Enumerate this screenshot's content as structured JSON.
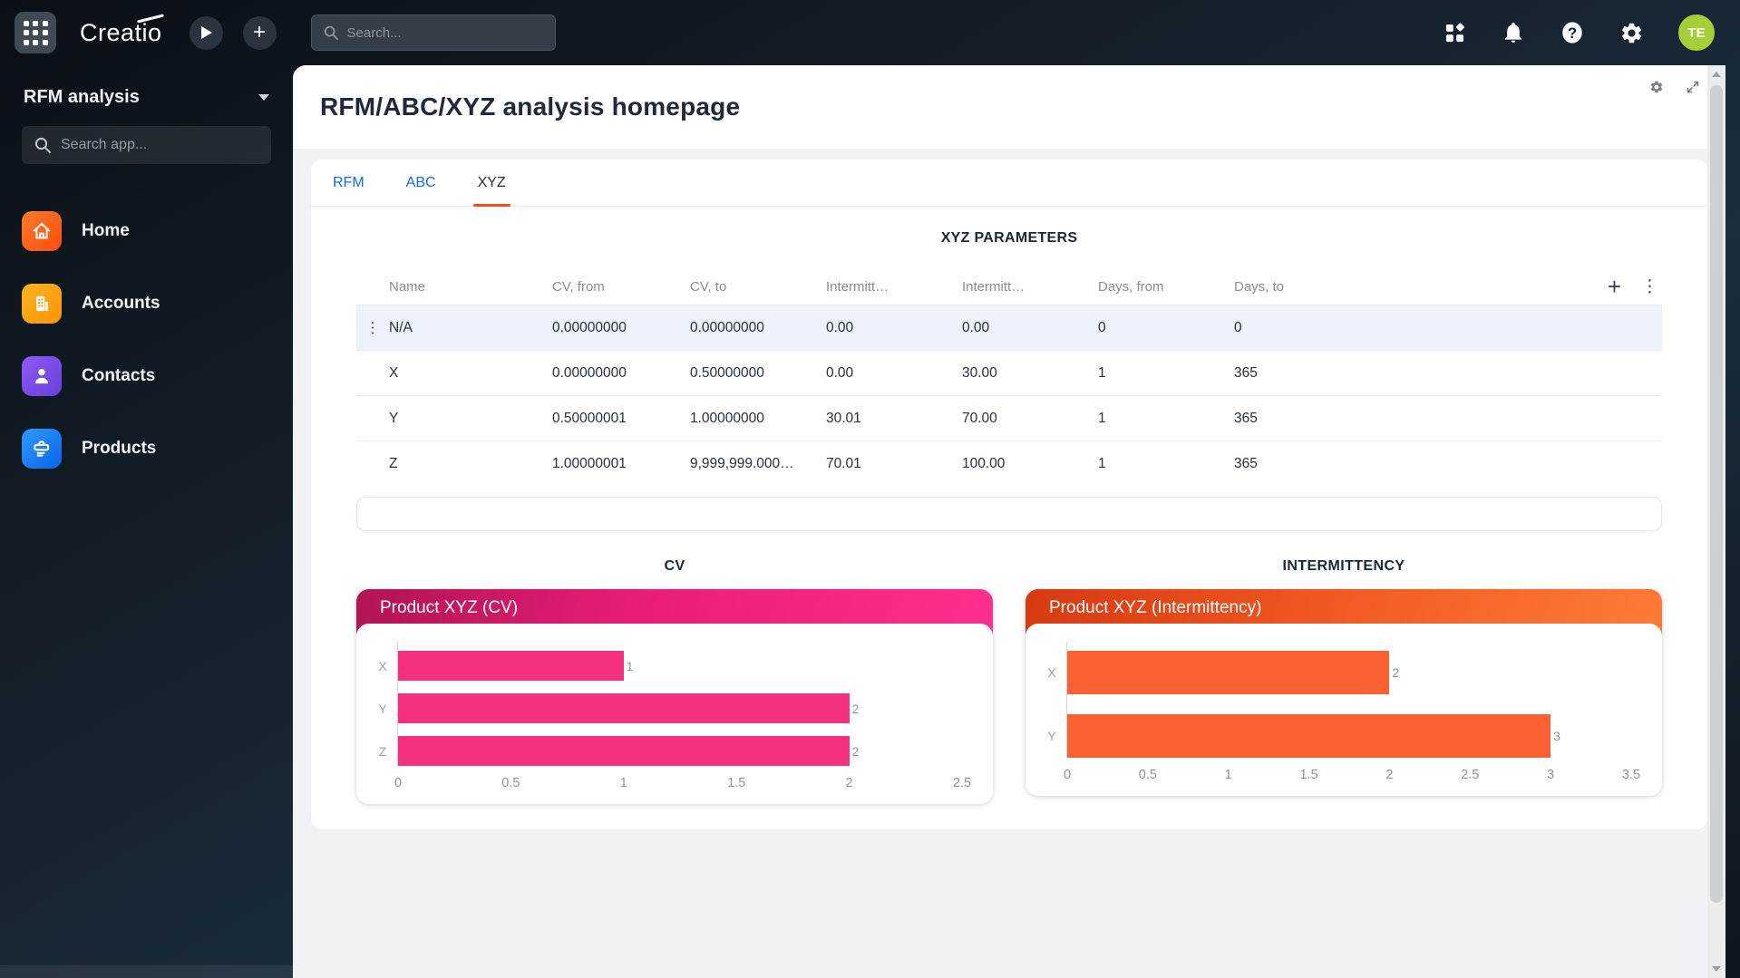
{
  "topbar": {
    "logo": "Creatio",
    "search_placeholder": "Search...",
    "avatar_initials": "TE",
    "avatar_color": "#a6ce39"
  },
  "sidebar": {
    "workspace": "RFM analysis",
    "search_placeholder": "Search app...",
    "items": [
      {
        "label": "Home",
        "icon": "home-icon",
        "color": "#fb4e0e"
      },
      {
        "label": "Accounts",
        "icon": "building-icon",
        "color": "#f99408"
      },
      {
        "label": "Contacts",
        "icon": "person-icon",
        "color": "#6a3fd8"
      },
      {
        "label": "Products",
        "icon": "briefcase-icon",
        "color": "#0b63e8"
      }
    ]
  },
  "page": {
    "title": "RFM/ABC/XYZ analysis homepage",
    "tabs": [
      {
        "label": "RFM",
        "active": false
      },
      {
        "label": "ABC",
        "active": false
      },
      {
        "label": "XYZ",
        "active": true
      }
    ]
  },
  "table": {
    "title": "XYZ PARAMETERS",
    "columns": [
      "Name",
      "CV, from",
      "CV, to",
      "Intermitt…",
      "Intermitt…",
      "Days, from",
      "Days, to"
    ],
    "rows": [
      {
        "name": "N/A",
        "cv_from": "0.00000000",
        "cv_to": "0.00000000",
        "int_from": "0.00",
        "int_to": "0.00",
        "days_from": "0",
        "days_to": "0",
        "selected": true
      },
      {
        "name": "X",
        "cv_from": "0.00000000",
        "cv_to": "0.50000000",
        "int_from": "0.00",
        "int_to": "30.00",
        "days_from": "1",
        "days_to": "365",
        "selected": false
      },
      {
        "name": "Y",
        "cv_from": "0.50000001",
        "cv_to": "1.00000000",
        "int_from": "30.01",
        "int_to": "70.00",
        "days_from": "1",
        "days_to": "365",
        "selected": false
      },
      {
        "name": "Z",
        "cv_from": "1.00000001",
        "cv_to": "9,999,999.000…",
        "int_from": "70.01",
        "int_to": "100.00",
        "days_from": "1",
        "days_to": "365",
        "selected": false
      }
    ]
  },
  "charts_section": {
    "left_title": "CV",
    "right_title": "INTERMITTENCY"
  },
  "chart_data": [
    {
      "type": "bar",
      "orientation": "horizontal",
      "title": "Product XYZ (CV)",
      "categories": [
        "X",
        "Y",
        "Z"
      ],
      "values": [
        1,
        2,
        2
      ],
      "xlim": [
        0,
        2.5
      ],
      "xticks": [
        0,
        0.5,
        1,
        1.5,
        2,
        2.5
      ],
      "grid": false,
      "legend": "none",
      "bar_color": "#f5307f",
      "header_gradient": [
        "#b01355",
        "#e91e77",
        "#fd308d"
      ]
    },
    {
      "type": "bar",
      "orientation": "horizontal",
      "title": "Product XYZ (Intermittency)",
      "categories": [
        "X",
        "Y"
      ],
      "values": [
        2,
        3
      ],
      "xlim": [
        0,
        3.5
      ],
      "xticks": [
        0,
        0.5,
        1,
        1.5,
        2,
        2.5,
        3,
        3.5
      ],
      "grid": false,
      "legend": "none",
      "bar_color": "#fa6233",
      "header_gradient": [
        "#d63a12",
        "#f05722",
        "#fd7b35"
      ]
    }
  ],
  "colors": {
    "tab_link": "#1569e3",
    "active_tab_underline": "#fa4a17",
    "selected_row_bg": "#edf2fb",
    "card_bg": "#f0f2f5"
  }
}
